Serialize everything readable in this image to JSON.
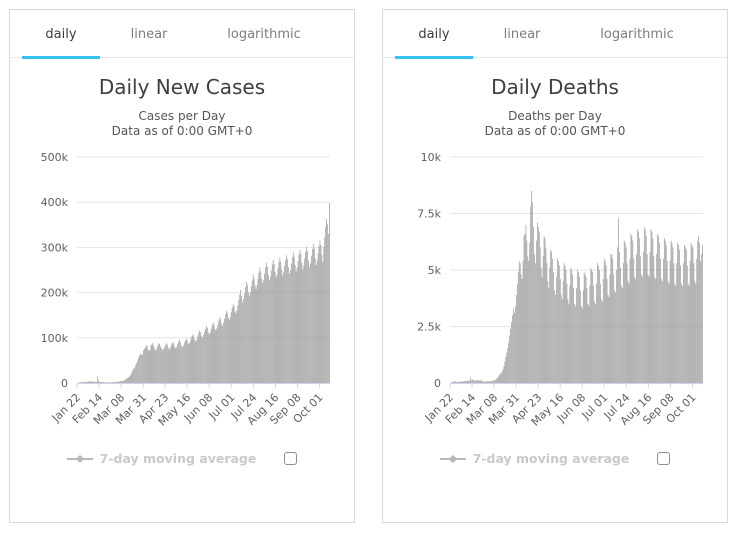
{
  "colors": {
    "accent": "#33c1f0",
    "card_border": "#d9d9d9",
    "tab_border": "#e9e9e9",
    "tab_active_text": "#3d3d3d",
    "tab_inactive_text": "#7d7d7d",
    "title_text": "#3b4045",
    "subtitle_text": "#555555",
    "tick_text": "#606060",
    "grid": "#e6e6e6",
    "axis": "#ccd6eb",
    "bar": "#999999",
    "legend_text": "#c9c9c9",
    "legend_marker": "#b9b9b9",
    "checkbox_border": "#8f8f8f"
  },
  "tabs": {
    "items": [
      {
        "label": "daily",
        "active": true
      },
      {
        "label": "linear",
        "active": false
      },
      {
        "label": "logarithmic",
        "active": false
      }
    ]
  },
  "chart_data": [
    {
      "type": "bar",
      "title": "Daily New Cases",
      "subtitle_line1": "Cases per Day",
      "subtitle_line2": "Data as of 0:00 GMT+0",
      "legend_label": "7-day moving average",
      "legend_checkbox_checked": false,
      "legend_position": "bottom",
      "grid": true,
      "unit": "thousands of cases per day",
      "x_range": [
        "Jan 22",
        "Oct 12"
      ],
      "ylim": [
        0,
        500
      ],
      "yticks": [
        {
          "v": 0,
          "label": "0"
        },
        {
          "v": 100,
          "label": "100k"
        },
        {
          "v": 200,
          "label": "200k"
        },
        {
          "v": 300,
          "label": "300k"
        },
        {
          "v": 400,
          "label": "400k"
        },
        {
          "v": 500,
          "label": "500k"
        }
      ],
      "xticks": [
        {
          "i": 0,
          "label": "Jan 22"
        },
        {
          "i": 23,
          "label": "Feb 14"
        },
        {
          "i": 46,
          "label": "Mar 08"
        },
        {
          "i": 69,
          "label": "Mar 31"
        },
        {
          "i": 92,
          "label": "Apr 23"
        },
        {
          "i": 115,
          "label": "May 16"
        },
        {
          "i": 138,
          "label": "Jun 08"
        },
        {
          "i": 161,
          "label": "Jul 01"
        },
        {
          "i": 184,
          "label": "Jul 24"
        },
        {
          "i": 207,
          "label": "Aug 16"
        },
        {
          "i": 230,
          "label": "Sep 08"
        },
        {
          "i": 253,
          "label": "Oct 01"
        }
      ],
      "values_k": [
        0.6,
        0.5,
        0.9,
        1.8,
        1.5,
        1.8,
        2.6,
        2.0,
        2.1,
        2.6,
        2.4,
        2.8,
        3.1,
        3.9,
        3.7,
        3.2,
        3.4,
        2.7,
        3.0,
        2.5,
        2.0,
        14.9,
        5.1,
        2.6,
        2.2,
        2.1,
        2.0,
        1.9,
        1.8,
        0.9,
        1.1,
        1.4,
        1.2,
        1.1,
        1.4,
        1.5,
        1.8,
        2.1,
        2.4,
        2.1,
        2.2,
        2.5,
        2.8,
        3.1,
        3.5,
        4.0,
        4.3,
        4.5,
        5.0,
        6.2,
        7.5,
        9.0,
        10.5,
        12.0,
        13.5,
        16.0,
        19.5,
        24.0,
        29.0,
        32.0,
        34.0,
        40.0,
        44.0,
        49.0,
        56.0,
        61.0,
        65.0,
        62.0,
        63.0,
        72.0,
        76.0,
        79.0,
        83.0,
        82.0,
        74.0,
        71.0,
        73.0,
        84.0,
        85.0,
        89.0,
        81.0,
        76.0,
        72.0,
        75.0,
        82.0,
        88.0,
        86.0,
        81.0,
        77.0,
        73.0,
        75.0,
        79.0,
        84.0,
        89.0,
        85.0,
        78.0,
        74.0,
        77.0,
        83.0,
        88.0,
        91.0,
        86.0,
        79.0,
        77.0,
        80.0,
        86.0,
        92.0,
        95.0,
        89.0,
        82.0,
        79.0,
        83.0,
        89.0,
        95.0,
        98.0,
        93.0,
        86.0,
        88.0,
        92.0,
        99.0,
        104.0,
        108.0,
        102.0,
        95.0,
        92.0,
        96.0,
        103.0,
        110.0,
        116.0,
        112.0,
        104.0,
        101.0,
        106.0,
        113.0,
        120.0,
        126.0,
        122.0,
        112.0,
        108.0,
        112.0,
        119.0,
        127.0,
        134.0,
        130.0,
        120.0,
        116.0,
        121.0,
        129.0,
        138.0,
        145.0,
        141.0,
        131.0,
        127.0,
        133.0,
        142.0,
        152.0,
        160.0,
        155.0,
        144.0,
        140.0,
        147.0,
        157.0,
        167.0,
        175.0,
        170.0,
        158.0,
        154.0,
        161.0,
        172.0,
        183.0,
        196.0,
        206.0,
        193.0,
        178.0,
        186.0,
        198.0,
        212.0,
        224.0,
        217.0,
        201.0,
        193.0,
        201.0,
        214.0,
        227.0,
        240.0,
        232.0,
        216.0,
        208.0,
        216.0,
        230.0,
        244.0,
        256.0,
        247.0,
        231.0,
        221.0,
        228.0,
        242.0,
        256.0,
        266.0,
        257.0,
        240.0,
        228.0,
        235.0,
        249.0,
        262.0,
        272.0,
        263.0,
        246.0,
        233.0,
        240.0,
        254.0,
        267.0,
        277.0,
        268.0,
        251.0,
        238.0,
        245.0,
        259.0,
        272.0,
        283.0,
        274.0,
        256.0,
        242.0,
        250.0,
        264.0,
        278.0,
        289.0,
        280.0,
        261.0,
        247.0,
        255.0,
        270.0,
        284.0,
        295.0,
        286.0,
        266.0,
        251.0,
        260.0,
        275.0,
        290.0,
        301.0,
        292.0,
        271.0,
        256.0,
        265.0,
        281.0,
        296.0,
        308.0,
        298.0,
        276.0,
        261.0,
        271.0,
        287.0,
        303.0,
        315.0,
        305.0,
        283.0,
        268.0,
        301.0,
        322.0,
        345.0,
        363.0,
        352.0,
        330.0,
        398.0
      ],
      "bar_color": "#999999"
    },
    {
      "type": "bar",
      "title": "Daily Deaths",
      "subtitle_line1": "Deaths per Day",
      "subtitle_line2": "Data as of 0:00 GMT+0",
      "legend_label": "7-day moving average",
      "legend_checkbox_checked": false,
      "legend_position": "bottom",
      "grid": true,
      "unit": "thousands of deaths per day",
      "x_range": [
        "Jan 22",
        "Oct 12"
      ],
      "ylim": [
        0,
        10
      ],
      "yticks": [
        {
          "v": 0,
          "label": "0"
        },
        {
          "v": 2.5,
          "label": "2.5k"
        },
        {
          "v": 5,
          "label": "5k"
        },
        {
          "v": 7.5,
          "label": "7.5k"
        },
        {
          "v": 10,
          "label": "10k"
        }
      ],
      "xticks": [
        {
          "i": 0,
          "label": "Jan 22"
        },
        {
          "i": 23,
          "label": "Feb 14"
        },
        {
          "i": 46,
          "label": "Mar 08"
        },
        {
          "i": 69,
          "label": "Mar 31"
        },
        {
          "i": 92,
          "label": "Apr 23"
        },
        {
          "i": 115,
          "label": "May 16"
        },
        {
          "i": 138,
          "label": "Jun 08"
        },
        {
          "i": 161,
          "label": "Jul 01"
        },
        {
          "i": 184,
          "label": "Jul 24"
        },
        {
          "i": 207,
          "label": "Aug 16"
        },
        {
          "i": 230,
          "label": "Sep 08"
        },
        {
          "i": 253,
          "label": "Oct 01"
        }
      ],
      "values_k": [
        0.02,
        0.02,
        0.04,
        0.06,
        0.06,
        0.08,
        0.06,
        0.04,
        0.06,
        0.05,
        0.05,
        0.06,
        0.07,
        0.07,
        0.07,
        0.09,
        0.09,
        0.09,
        0.1,
        0.11,
        0.1,
        0.25,
        0.12,
        0.15,
        0.14,
        0.11,
        0.1,
        0.14,
        0.12,
        0.12,
        0.11,
        0.11,
        0.15,
        0.08,
        0.07,
        0.07,
        0.06,
        0.06,
        0.09,
        0.06,
        0.07,
        0.08,
        0.08,
        0.09,
        0.1,
        0.11,
        0.12,
        0.14,
        0.18,
        0.22,
        0.28,
        0.34,
        0.4,
        0.45,
        0.5,
        0.6,
        0.75,
        0.95,
        1.15,
        1.35,
        1.55,
        1.8,
        2.1,
        2.4,
        2.7,
        3.0,
        3.3,
        3.1,
        3.4,
        3.9,
        4.4,
        4.9,
        5.4,
        5.3,
        4.8,
        4.6,
        5.4,
        6.5,
        6.6,
        7.0,
        6.3,
        5.6,
        5.4,
        6.2,
        7.8,
        8.5,
        8.0,
        6.9,
        5.7,
        5.3,
        6.3,
        7.1,
        6.9,
        6.7,
        6.0,
        5.1,
        4.7,
        5.6,
        6.5,
        6.4,
        6.0,
        5.3,
        4.5,
        4.2,
        5.1,
        5.9,
        5.8,
        5.5,
        4.9,
        4.1,
        3.9,
        4.7,
        5.5,
        5.4,
        5.2,
        4.6,
        3.9,
        3.7,
        4.5,
        5.3,
        5.2,
        5.0,
        4.4,
        3.7,
        3.5,
        4.3,
        5.1,
        5.0,
        4.8,
        4.2,
        3.5,
        3.4,
        4.2,
        5.0,
        4.9,
        4.7,
        4.1,
        3.4,
        3.3,
        4.1,
        4.9,
        4.8,
        4.7,
        4.2,
        3.5,
        3.4,
        4.3,
        5.1,
        5.0,
        4.9,
        4.3,
        3.6,
        3.5,
        4.4,
        5.3,
        5.2,
        5.0,
        4.4,
        3.7,
        3.6,
        4.6,
        5.5,
        5.4,
        5.2,
        4.6,
        3.9,
        3.8,
        4.8,
        5.7,
        5.7,
        5.5,
        4.8,
        4.1,
        4.0,
        5.0,
        6.0,
        7.3,
        5.8,
        5.1,
        4.3,
        4.2,
        5.3,
        6.3,
        6.2,
        6.0,
        5.3,
        4.5,
        4.4,
        5.5,
        6.6,
        6.5,
        6.3,
        5.5,
        4.7,
        4.6,
        5.7,
        6.8,
        6.7,
        6.4,
        5.6,
        4.8,
        4.7,
        5.8,
        6.9,
        6.8,
        6.5,
        5.7,
        4.8,
        4.7,
        5.8,
        6.8,
        6.7,
        6.4,
        5.6,
        4.7,
        4.6,
        5.7,
        6.6,
        6.5,
        6.2,
        5.5,
        4.6,
        4.5,
        5.5,
        6.4,
        6.3,
        6.1,
        5.4,
        4.5,
        4.4,
        5.4,
        6.3,
        6.2,
        6.0,
        5.3,
        4.4,
        4.3,
        5.3,
        6.2,
        6.1,
        5.9,
        5.2,
        4.4,
        4.3,
        5.3,
        6.1,
        6.0,
        5.9,
        5.2,
        4.4,
        4.3,
        5.4,
        6.2,
        6.1,
        6.0,
        5.3,
        4.5,
        4.4,
        5.5,
        6.3,
        6.5,
        6.2,
        5.4,
        5.7,
        6.1
      ],
      "bar_color": "#999999"
    }
  ]
}
